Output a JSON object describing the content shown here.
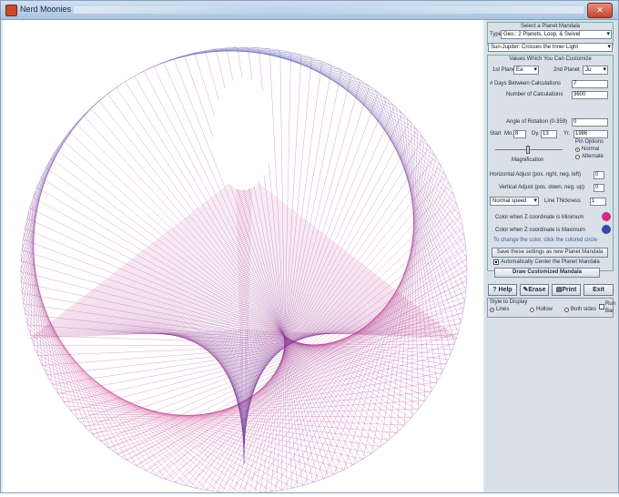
{
  "window": {
    "title": "Nerd Moonies",
    "close_glyph": "✕"
  },
  "panel": {
    "group1_title": "Select a Planet Mandala",
    "type_label": "Type",
    "type_value": "Geo.: 2 Planets, Loop, & Swivel",
    "preset_value": "Sun-Jupiter: Crosses the Inner Light",
    "values_title": "Values Which You Can Customize",
    "planet1_label": "1st Planet",
    "planet1_value": "Ea",
    "planet2_label": "2nd Planet",
    "planet2_value": "Ju",
    "days_label": "# Days Between Calculations",
    "days_value": "7",
    "calcs_label": "Number of Calculations",
    "calcs_value": "3600",
    "angle_label": "Angle of Rotation (0-359)",
    "angle_value": "0",
    "start_label": "Start",
    "mo_label": "Mo.",
    "mo_value": "8",
    "dy_label": "Dy.",
    "dy_value": "13",
    "yr_label": "Yr.",
    "yr_value": "1986",
    "mag_label": "Magnification",
    "pin_label": "Pin Options",
    "pin_normal": "Normal",
    "pin_alternate": "Alternate",
    "horiz_label": "Horizontal Adjust (pos. right, neg. left)",
    "horiz_value": "0",
    "vert_label": "Vertical Adjust (pos. down, neg. up)",
    "vert_value": "0",
    "line_style": "Normal speed",
    "line_thick_label": "Line Thickness",
    "line_thick_value": "1",
    "color_min_label": "Color when Z coordinate is Minimum",
    "color_max_label": "Color when Z coordinate is Maximum",
    "color_hint": "To change the color, click the colored circle",
    "save_btn": "Save these settings as new Planet Mandala",
    "auto_label": "Automatically Center the Planet Mandala",
    "draw_btn": "Draw Customized Mandala",
    "color_min": "#d6287f",
    "color_max": "#3b46a8"
  },
  "toolbar": {
    "help": "Help",
    "erase": "Erase",
    "print": "Print",
    "exit": "Exit"
  },
  "draw_style": {
    "title": "Style to Display",
    "lines": "Lines",
    "hollow": "Hollow",
    "both": "Both sides",
    "run_label": "Run",
    "bar_label": "Bar"
  }
}
